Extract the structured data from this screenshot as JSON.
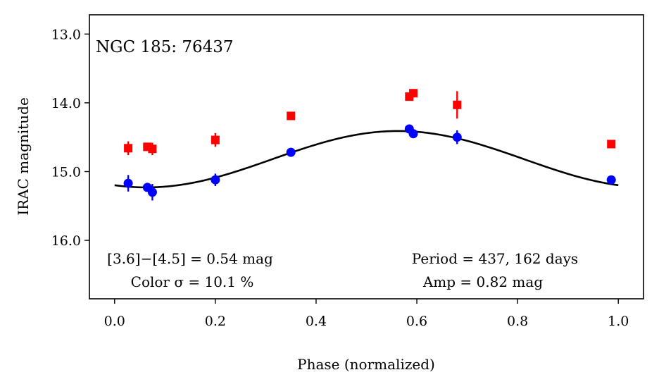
{
  "chart_data": {
    "type": "scatter",
    "title": "NGC 185:  76437",
    "xlabel": "Phase (normalized)",
    "ylabel": "IRAC magnitude",
    "xlim": [
      -0.05,
      1.05
    ],
    "ylim": [
      16.85,
      12.72
    ],
    "y_inverted": true,
    "xticks": [
      0.0,
      0.2,
      0.4,
      0.6,
      0.8,
      1.0
    ],
    "xtick_labels": [
      "0.0",
      "0.2",
      "0.4",
      "0.6",
      "0.8",
      "1.0"
    ],
    "yticks": [
      13.0,
      14.0,
      15.0,
      16.0
    ],
    "ytick_labels": [
      "13.0",
      "14.0",
      "15.0",
      "16.0"
    ],
    "grid": false,
    "series": [
      {
        "name": "[3.6]",
        "marker": "circle",
        "color": "#0000ff",
        "points": [
          {
            "x": 0.027,
            "y": 15.17,
            "err": 0.12
          },
          {
            "x": 0.065,
            "y": 15.23,
            "err": 0.05
          },
          {
            "x": 0.075,
            "y": 15.3,
            "err": 0.12
          },
          {
            "x": 0.2,
            "y": 15.12,
            "err": 0.09
          },
          {
            "x": 0.35,
            "y": 14.72,
            "err": 0.03
          },
          {
            "x": 0.585,
            "y": 14.38,
            "err": 0.03
          },
          {
            "x": 0.593,
            "y": 14.45,
            "err": 0.03
          },
          {
            "x": 0.68,
            "y": 14.5,
            "err": 0.1
          },
          {
            "x": 0.986,
            "y": 15.12,
            "err": 0.03
          }
        ]
      },
      {
        "name": "[4.5]",
        "marker": "square",
        "color": "#ff0000",
        "points": [
          {
            "x": 0.027,
            "y": 14.66,
            "err": 0.1
          },
          {
            "x": 0.065,
            "y": 14.64,
            "err": 0.06
          },
          {
            "x": 0.075,
            "y": 14.67,
            "err": 0.09
          },
          {
            "x": 0.2,
            "y": 14.54,
            "err": 0.1
          },
          {
            "x": 0.35,
            "y": 14.19,
            "err": 0.04
          },
          {
            "x": 0.585,
            "y": 13.91,
            "err": 0.06
          },
          {
            "x": 0.593,
            "y": 13.86,
            "err": 0.06
          },
          {
            "x": 0.68,
            "y": 14.03,
            "err": 0.2
          },
          {
            "x": 0.986,
            "y": 14.6,
            "err": 0.03
          }
        ]
      }
    ],
    "fit_curve": {
      "name": "sinusoid fit",
      "color": "#000000",
      "mean": 14.82,
      "amplitude": 0.41,
      "peak_phase": 0.563,
      "x_range": [
        0.0,
        1.0
      ]
    },
    "annotations": {
      "color_diff": "[3.6]−[4.5] = 0.54 mag",
      "color_sigma": "Color σ = 10.1 %",
      "period": "Period = 437, 162 days",
      "amp": "Amp = 0.82 mag"
    }
  }
}
